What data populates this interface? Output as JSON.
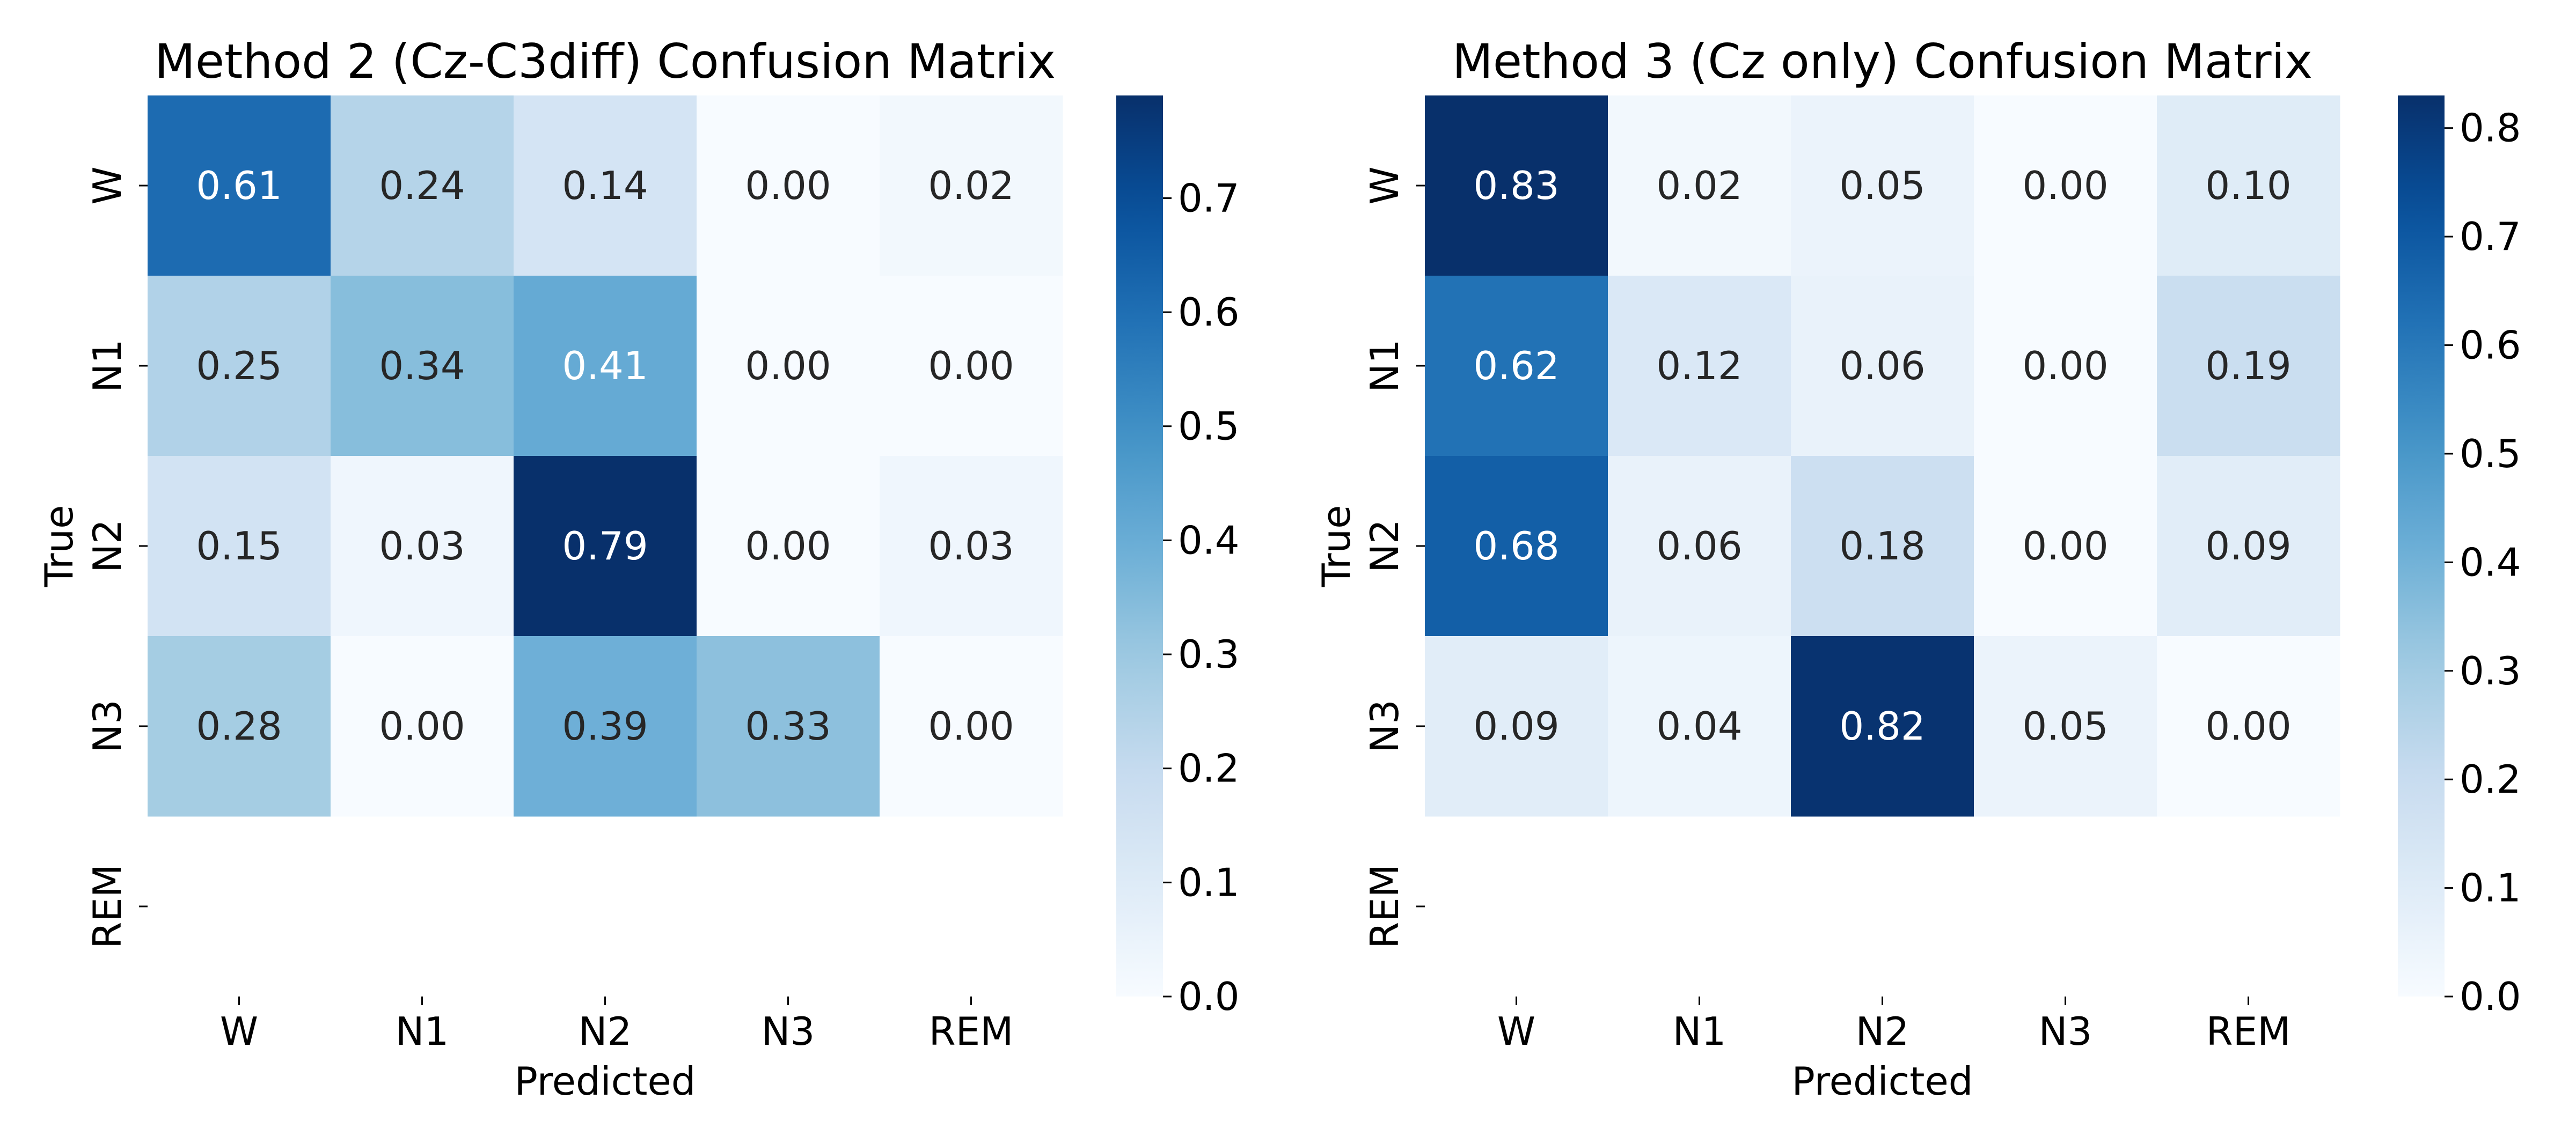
{
  "chart_data": [
    {
      "type": "heatmap",
      "title": "Method 2 (Cz-C3diff) Confusion Matrix",
      "xlabel": "Predicted",
      "ylabel": "True",
      "x_categories": [
        "W",
        "N1",
        "N2",
        "N3",
        "REM"
      ],
      "y_categories": [
        "W",
        "N1",
        "N2",
        "N3",
        "REM"
      ],
      "values": [
        [
          0.61,
          0.24,
          0.14,
          0.0,
          0.02
        ],
        [
          0.25,
          0.34,
          0.41,
          0.0,
          0.0
        ],
        [
          0.15,
          0.03,
          0.79,
          0.0,
          0.03
        ],
        [
          0.28,
          0.0,
          0.39,
          0.33,
          0.0
        ],
        [
          null,
          null,
          null,
          null,
          null
        ]
      ],
      "value_format": "0.00",
      "colormap": "Blues",
      "colorbar": {
        "min": 0.0,
        "max": 0.79,
        "ticks": [
          0.0,
          0.1,
          0.2,
          0.3,
          0.4,
          0.5,
          0.6,
          0.7
        ]
      }
    },
    {
      "type": "heatmap",
      "title": "Method 3 (Cz only) Confusion Matrix",
      "xlabel": "Predicted",
      "ylabel": "True",
      "x_categories": [
        "W",
        "N1",
        "N2",
        "N3",
        "REM"
      ],
      "y_categories": [
        "W",
        "N1",
        "N2",
        "N3",
        "REM"
      ],
      "values": [
        [
          0.83,
          0.02,
          0.05,
          0.0,
          0.1
        ],
        [
          0.62,
          0.12,
          0.06,
          0.0,
          0.19
        ],
        [
          0.68,
          0.06,
          0.18,
          0.0,
          0.09
        ],
        [
          0.09,
          0.04,
          0.82,
          0.05,
          0.0
        ],
        [
          null,
          null,
          null,
          null,
          null
        ]
      ],
      "value_format": "0.00",
      "colormap": "Blues",
      "colorbar": {
        "min": 0.0,
        "max": 0.83,
        "ticks": [
          0.0,
          0.1,
          0.2,
          0.3,
          0.4,
          0.5,
          0.6,
          0.7,
          0.8
        ]
      }
    }
  ]
}
